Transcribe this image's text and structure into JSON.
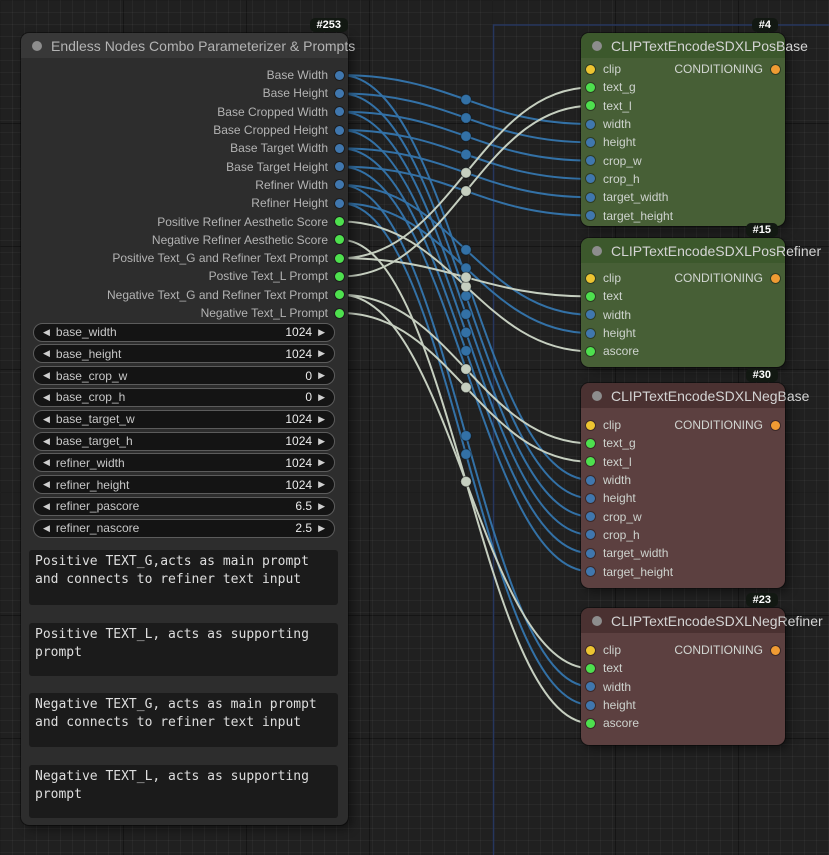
{
  "colors": {
    "wire_int": "#3371a6",
    "wire_text": "#c6cfc0",
    "port_int": "#4077ae",
    "port_text": "#4ee04e",
    "port_clip": "#edc431",
    "port_conditioning": "#ef9b33",
    "group_outline": "#26365e"
  },
  "left_node": {
    "badge": "#253",
    "title": "Endless Nodes Combo Parameterizer & Prompts",
    "outputs": [
      {
        "label": "Base Width",
        "type": "int"
      },
      {
        "label": "Base Height",
        "type": "int"
      },
      {
        "label": "Base Cropped Width",
        "type": "int"
      },
      {
        "label": "Base Cropped Height",
        "type": "int"
      },
      {
        "label": "Base Target Width",
        "type": "int"
      },
      {
        "label": "Base Target Height",
        "type": "int"
      },
      {
        "label": "Refiner Width",
        "type": "int"
      },
      {
        "label": "Refiner Height",
        "type": "int"
      },
      {
        "label": "Positive Refiner Aesthetic Score",
        "type": "text"
      },
      {
        "label": "Negative Refiner Aesthetic Score",
        "type": "text"
      },
      {
        "label": "Positive Text_G and Refiner Text Prompt",
        "type": "text"
      },
      {
        "label": "Postive Text_L Prompt",
        "type": "text"
      },
      {
        "label": "Negative Text_G and Refiner Text Prompt",
        "type": "text"
      },
      {
        "label": "Negative Text_L Prompt",
        "type": "text"
      }
    ],
    "widgets": [
      {
        "name": "base_width",
        "value": "1024"
      },
      {
        "name": "base_height",
        "value": "1024"
      },
      {
        "name": "base_crop_w",
        "value": "0"
      },
      {
        "name": "base_crop_h",
        "value": "0"
      },
      {
        "name": "base_target_w",
        "value": "1024"
      },
      {
        "name": "base_target_h",
        "value": "1024"
      },
      {
        "name": "refiner_width",
        "value": "1024"
      },
      {
        "name": "refiner_height",
        "value": "1024"
      },
      {
        "name": "refiner_pascore",
        "value": "6.5"
      },
      {
        "name": "refiner_nascore",
        "value": "2.5"
      }
    ],
    "textareas": [
      "Positive TEXT_G,acts as main prompt and connects to refiner text input",
      "Positive TEXT_L, acts as supporting prompt",
      "Negative TEXT_G, acts as main prompt and connects to refiner text input",
      "Negative TEXT_L, acts as supporting prompt"
    ]
  },
  "right_nodes": [
    {
      "badge": "#4",
      "title": "CLIPTextEncodeSDXLPosBase",
      "theme": "green",
      "inputs": [
        {
          "name": "clip",
          "type": "clip"
        },
        {
          "name": "text_g",
          "type": "text"
        },
        {
          "name": "text_l",
          "type": "text"
        },
        {
          "name": "width",
          "type": "int"
        },
        {
          "name": "height",
          "type": "int"
        },
        {
          "name": "crop_w",
          "type": "int"
        },
        {
          "name": "crop_h",
          "type": "int"
        },
        {
          "name": "target_width",
          "type": "int"
        },
        {
          "name": "target_height",
          "type": "int"
        }
      ],
      "output_label": "CONDITIONING"
    },
    {
      "badge": "#15",
      "title": "CLIPTextEncodeSDXLPosRefiner",
      "theme": "green",
      "inputs": [
        {
          "name": "clip",
          "type": "clip"
        },
        {
          "name": "text",
          "type": "text"
        },
        {
          "name": "width",
          "type": "int"
        },
        {
          "name": "height",
          "type": "int"
        },
        {
          "name": "ascore",
          "type": "text"
        }
      ],
      "output_label": "CONDITIONING"
    },
    {
      "badge": "#30",
      "title": "CLIPTextEncodeSDXLNegBase",
      "theme": "red",
      "inputs": [
        {
          "name": "clip",
          "type": "clip"
        },
        {
          "name": "text_g",
          "type": "text"
        },
        {
          "name": "text_l",
          "type": "text"
        },
        {
          "name": "width",
          "type": "int"
        },
        {
          "name": "height",
          "type": "int"
        },
        {
          "name": "crop_w",
          "type": "int"
        },
        {
          "name": "crop_h",
          "type": "int"
        },
        {
          "name": "target_width",
          "type": "int"
        },
        {
          "name": "target_height",
          "type": "int"
        }
      ],
      "output_label": "CONDITIONING"
    },
    {
      "badge": "#23",
      "title": "CLIPTextEncodeSDXLNegRefiner",
      "theme": "red",
      "inputs": [
        {
          "name": "clip",
          "type": "clip"
        },
        {
          "name": "text",
          "type": "text"
        },
        {
          "name": "width",
          "type": "int"
        },
        {
          "name": "height",
          "type": "int"
        },
        {
          "name": "ascore",
          "type": "text"
        }
      ],
      "output_label": "CONDITIONING"
    }
  ],
  "links": [
    {
      "from_output": 0,
      "to_node": 0,
      "to_input": 3
    },
    {
      "from_output": 0,
      "to_node": 2,
      "to_input": 3
    },
    {
      "from_output": 1,
      "to_node": 0,
      "to_input": 4
    },
    {
      "from_output": 1,
      "to_node": 2,
      "to_input": 4
    },
    {
      "from_output": 2,
      "to_node": 0,
      "to_input": 5
    },
    {
      "from_output": 2,
      "to_node": 2,
      "to_input": 5
    },
    {
      "from_output": 3,
      "to_node": 0,
      "to_input": 6
    },
    {
      "from_output": 3,
      "to_node": 2,
      "to_input": 6
    },
    {
      "from_output": 4,
      "to_node": 0,
      "to_input": 7
    },
    {
      "from_output": 4,
      "to_node": 2,
      "to_input": 7
    },
    {
      "from_output": 5,
      "to_node": 0,
      "to_input": 8
    },
    {
      "from_output": 5,
      "to_node": 2,
      "to_input": 8
    },
    {
      "from_output": 6,
      "to_node": 1,
      "to_input": 2
    },
    {
      "from_output": 6,
      "to_node": 3,
      "to_input": 2
    },
    {
      "from_output": 7,
      "to_node": 1,
      "to_input": 3
    },
    {
      "from_output": 7,
      "to_node": 3,
      "to_input": 3
    },
    {
      "from_output": 8,
      "to_node": 1,
      "to_input": 4
    },
    {
      "from_output": 9,
      "to_node": 3,
      "to_input": 4
    },
    {
      "from_output": 10,
      "to_node": 0,
      "to_input": 1
    },
    {
      "from_output": 10,
      "to_node": 1,
      "to_input": 1
    },
    {
      "from_output": 11,
      "to_node": 0,
      "to_input": 2
    },
    {
      "from_output": 12,
      "to_node": 2,
      "to_input": 1
    },
    {
      "from_output": 12,
      "to_node": 3,
      "to_input": 1
    },
    {
      "from_output": 13,
      "to_node": 2,
      "to_input": 2
    }
  ]
}
